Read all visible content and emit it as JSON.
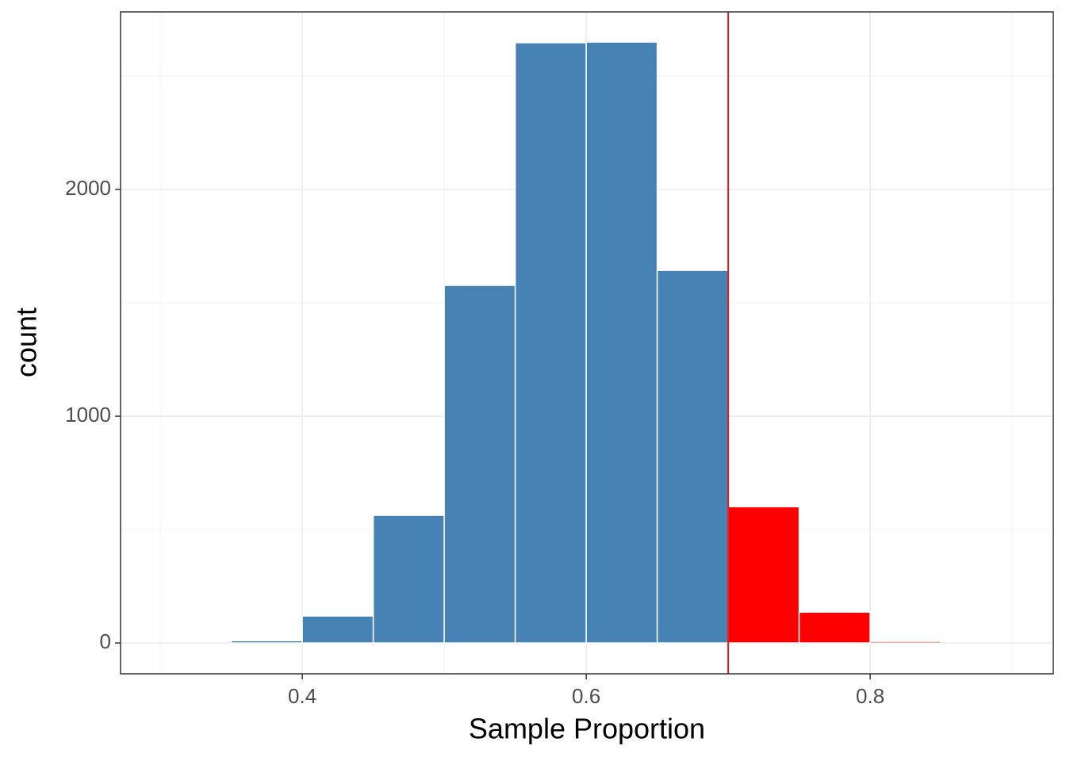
{
  "chart_data": {
    "type": "histogram",
    "xlabel": "Sample Proportion",
    "ylabel": "count",
    "bins": [
      0.35,
      0.4,
      0.45,
      0.5,
      0.55,
      0.6,
      0.65,
      0.7,
      0.75,
      0.8,
      0.85
    ],
    "values": [
      10,
      119,
      563,
      1577,
      2647,
      2650,
      1643,
      601,
      136,
      7
    ],
    "colors": [
      "#4682b4",
      "#4682b4",
      "#4682b4",
      "#4682b4",
      "#4682b4",
      "#4682b4",
      "#4682b4",
      "#ff0000",
      "#ff0000",
      "#ff0000"
    ],
    "vline": 0.7,
    "vline_color": "#e31a1c",
    "xlim": [
      0.272,
      0.929
    ],
    "ylim": [
      -136,
      2783
    ],
    "xticks": [
      0.4,
      0.6,
      0.8
    ],
    "yticks": [
      0,
      1000,
      2000
    ],
    "minor_xticks": [
      0.3,
      0.5,
      0.7,
      0.9
    ],
    "minor_yticks": [
      500,
      1500,
      2500
    ],
    "grid": true
  }
}
